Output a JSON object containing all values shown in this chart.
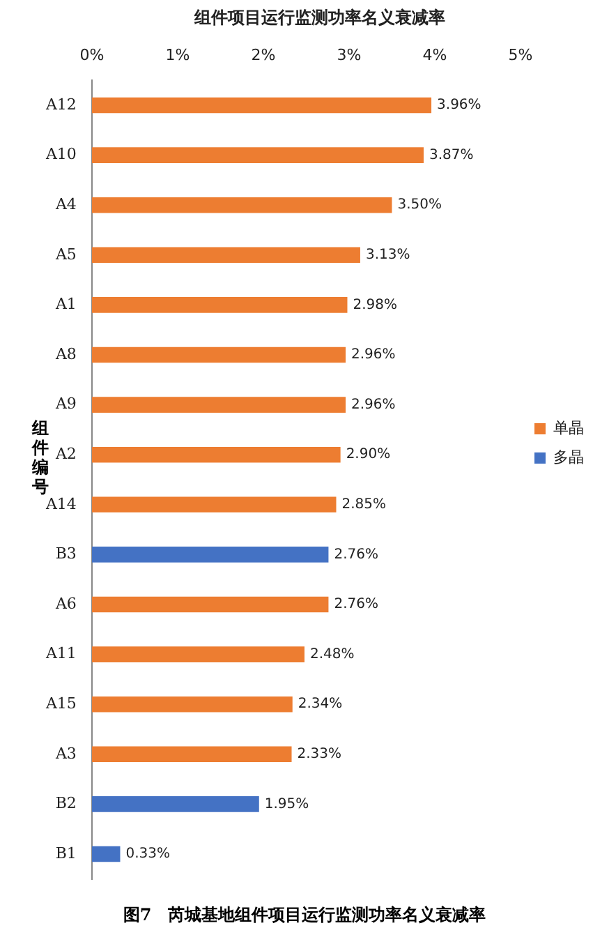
{
  "chart_data": {
    "type": "bar",
    "orientation": "horizontal",
    "stacked": true,
    "title": "组件项目运行监测功率名义衰减率",
    "ylabel": "组件编号",
    "categories": [
      "A12",
      "A10",
      "A4",
      "A5",
      "A1",
      "A8",
      "A9",
      "A2",
      "A14",
      "B3",
      "A6",
      "A11",
      "A15",
      "A3",
      "B2",
      "B1"
    ],
    "series": [
      {
        "name": "单晶",
        "color": "#ed7d31",
        "values": [
          3.96,
          3.87,
          3.5,
          3.13,
          2.98,
          2.96,
          2.96,
          2.9,
          2.85,
          null,
          2.76,
          2.48,
          2.34,
          2.33,
          null,
          null
        ],
        "value_labels": [
          "3.96%",
          "3.87%",
          "3.50%",
          "3.13%",
          "2.98%",
          "2.96%",
          "2.96%",
          "2.90%",
          "2.85%",
          null,
          "2.76%",
          "2.48%",
          "2.34%",
          "2.33%",
          null,
          null
        ]
      },
      {
        "name": "多晶",
        "color": "#4472c4",
        "values": [
          null,
          null,
          null,
          null,
          null,
          null,
          null,
          null,
          null,
          2.76,
          null,
          null,
          null,
          null,
          1.95,
          0.33
        ],
        "value_labels": [
          null,
          null,
          null,
          null,
          null,
          null,
          null,
          null,
          null,
          "2.76%",
          null,
          null,
          null,
          null,
          "1.95%",
          "0.33%"
        ]
      }
    ],
    "xlim": [
      0,
      5
    ],
    "xticks": [
      {
        "value": 0,
        "label": "0%"
      },
      {
        "value": 1,
        "label": "1%"
      },
      {
        "value": 2,
        "label": "2%"
      },
      {
        "value": 3,
        "label": "3%"
      },
      {
        "value": 4,
        "label": "4%"
      },
      {
        "value": 5,
        "label": "5%"
      }
    ],
    "grid": false,
    "legend": "right",
    "annotations": [
      "图7　芮城基地组件项目运行监测功率名义衰减率"
    ]
  }
}
